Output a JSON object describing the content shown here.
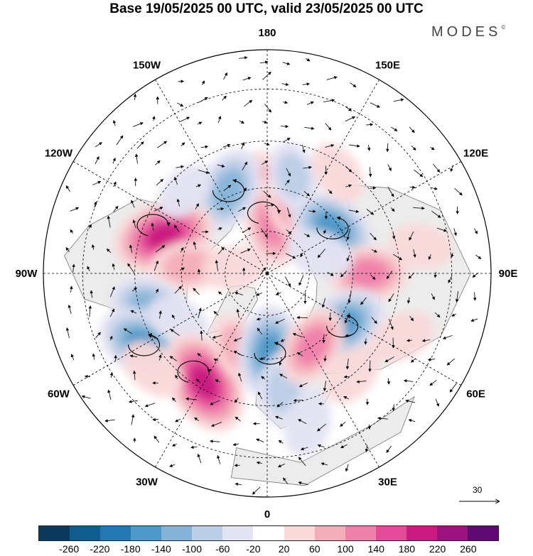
{
  "title": "Base 19/05/2025 00 UTC, valid 23/05/2025 00 UTC",
  "logo": "MODES",
  "logo_mark": "©",
  "longitude_labels": [
    {
      "text": "180",
      "lon": 180
    },
    {
      "text": "150E",
      "lon": 150
    },
    {
      "text": "120E",
      "lon": 120
    },
    {
      "text": "90E",
      "lon": 90
    },
    {
      "text": "60E",
      "lon": 60
    },
    {
      "text": "30E",
      "lon": 30
    },
    {
      "text": "0",
      "lon": 0
    },
    {
      "text": "30W",
      "lon": -30
    },
    {
      "text": "60W",
      "lon": -60
    },
    {
      "text": "90W",
      "lon": -90
    },
    {
      "text": "120W",
      "lon": -120
    },
    {
      "text": "150W",
      "lon": -150
    }
  ],
  "reference_vector": {
    "label": "30"
  },
  "colorbar": {
    "colors": [
      "#0c3a5c",
      "#0f5c8e",
      "#2479b5",
      "#4d98c8",
      "#86b4d8",
      "#bccde6",
      "#e3e3f2",
      "#ffffff",
      "#fad9d9",
      "#f4aeb9",
      "#ef80aa",
      "#e44a98",
      "#c91b80",
      "#9b137f",
      "#5e0a72"
    ],
    "labels": [
      "-260",
      "-220",
      "-180",
      "-140",
      "-100",
      "-60",
      "-20",
      "20",
      "60",
      "100",
      "140",
      "180",
      "220",
      "260"
    ]
  },
  "anomalies": [
    {
      "lat": 60,
      "lon": -175,
      "value": 80
    },
    {
      "lat": 72,
      "lon": 172,
      "value": 130
    },
    {
      "lat": 65,
      "lon": 160,
      "value": 60
    },
    {
      "lat": 55,
      "lon": 165,
      "value": -60
    },
    {
      "lat": 58,
      "lon": -155,
      "value": -130
    },
    {
      "lat": 62,
      "lon": 125,
      "value": -140
    },
    {
      "lat": 48,
      "lon": 145,
      "value": 40
    },
    {
      "lat": 52,
      "lon": -110,
      "value": 190
    },
    {
      "lat": 62,
      "lon": -95,
      "value": 80
    },
    {
      "lat": 55,
      "lon": 90,
      "value": 110
    },
    {
      "lat": 38,
      "lon": 100,
      "value": 40
    },
    {
      "lat": 48,
      "lon": -75,
      "value": -100
    },
    {
      "lat": 42,
      "lon": -60,
      "value": -160
    },
    {
      "lat": 55,
      "lon": -62,
      "value": -40
    },
    {
      "lat": 47,
      "lon": -30,
      "value": 200
    },
    {
      "lat": 62,
      "lon": -22,
      "value": 60
    },
    {
      "lat": 62,
      "lon": 2,
      "value": -160
    },
    {
      "lat": 50,
      "lon": 8,
      "value": -80
    },
    {
      "lat": 38,
      "lon": 15,
      "value": -50
    },
    {
      "lat": 58,
      "lon": 55,
      "value": -150
    },
    {
      "lat": 60,
      "lon": 32,
      "value": 110
    },
    {
      "lat": 45,
      "lon": 40,
      "value": 40
    },
    {
      "lat": 40,
      "lon": 65,
      "value": 50
    },
    {
      "lat": 78,
      "lon": -100,
      "value": 40
    },
    {
      "lat": 50,
      "lon": -135,
      "value": -30
    },
    {
      "lat": 40,
      "lon": -50,
      "value": 50
    },
    {
      "lat": 70,
      "lon": 110,
      "value": -50
    }
  ]
}
